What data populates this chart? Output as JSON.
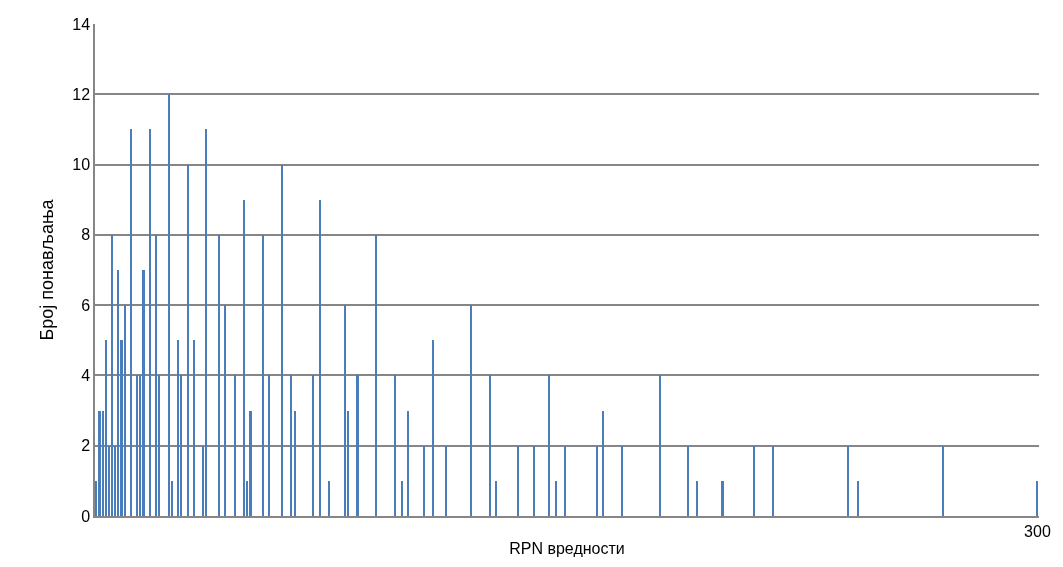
{
  "chart_data": {
    "type": "bar",
    "xlabel": "RPN вредности",
    "ylabel": "Број понављања",
    "color": "#4a7ebb",
    "categories": [
      null,
      null,
      null,
      null,
      null,
      null,
      null,
      null,
      null,
      null,
      null,
      null,
      null,
      null,
      null,
      null,
      null,
      null,
      null,
      null,
      null,
      null,
      null,
      null,
      null,
      null,
      null,
      null,
      null,
      null,
      null,
      null,
      null,
      null,
      null,
      null,
      null,
      null,
      null,
      null,
      null,
      null,
      null,
      null,
      null,
      null,
      null,
      null,
      null,
      null,
      null,
      null,
      null,
      null,
      null,
      null,
      null,
      null,
      null,
      null,
      null,
      null,
      null,
      null,
      null,
      null,
      null,
      null,
      null,
      null,
      null,
      null,
      null,
      null,
      null,
      null,
      null,
      null,
      null,
      null,
      null,
      null,
      null,
      null,
      null,
      null,
      null,
      null,
      null,
      null,
      null,
      null,
      null,
      null,
      null,
      null,
      null,
      null,
      null,
      null,
      null,
      null,
      null,
      null,
      null,
      null,
      null,
      null,
      null,
      null,
      null,
      null,
      null,
      null,
      null,
      null,
      null,
      null,
      null,
      null,
      null,
      null,
      null,
      null,
      null,
      null,
      null,
      null,
      null,
      null,
      null,
      null,
      null,
      null,
      null,
      null,
      null,
      null,
      null,
      null,
      null,
      null,
      null,
      null,
      null,
      null,
      null,
      null,
      null,
      null,
      null,
      null,
      null,
      null,
      null,
      null,
      null,
      null,
      null,
      null,
      null,
      null,
      null,
      null,
      null,
      null,
      null,
      null,
      null,
      null,
      null,
      null,
      null,
      null,
      null,
      null,
      null,
      null,
      null,
      null,
      null,
      null,
      null,
      null,
      null,
      null,
      null,
      null,
      null,
      null,
      null,
      null,
      null,
      null,
      null,
      null,
      null,
      null,
      null,
      null,
      null,
      null,
      null,
      null,
      null,
      null,
      null,
      null,
      null,
      null,
      null,
      null,
      null,
      null,
      null,
      null,
      null,
      null,
      null,
      null,
      null,
      null,
      null,
      null,
      null,
      null,
      null,
      null,
      null,
      null,
      null,
      null,
      null,
      null,
      null,
      null,
      null,
      null,
      null,
      null,
      null,
      null,
      null,
      null,
      null,
      null,
      null,
      null,
      null,
      null,
      null,
      null,
      null,
      null,
      null,
      null,
      null,
      null,
      null,
      null,
      null,
      null,
      null,
      null,
      null,
      null,
      null,
      null,
      null,
      null,
      null,
      null,
      null,
      null,
      null,
      null,
      null,
      null,
      null,
      null,
      null,
      null,
      null,
      null,
      null,
      null,
      null,
      null,
      null,
      null,
      null,
      null,
      null,
      null,
      null,
      null,
      null,
      null,
      null,
      "300"
    ],
    "values": [
      1,
      3,
      3,
      5,
      2,
      8,
      2,
      7,
      5,
      6,
      null,
      11,
      null,
      4,
      4,
      7,
      null,
      11,
      null,
      8,
      4,
      null,
      null,
      12,
      1,
      null,
      5,
      4,
      null,
      10,
      null,
      5,
      null,
      null,
      2,
      11,
      null,
      null,
      null,
      8,
      null,
      6,
      null,
      null,
      4,
      null,
      null,
      9,
      1,
      3,
      null,
      null,
      null,
      8,
      null,
      4,
      null,
      null,
      null,
      10,
      null,
      null,
      4,
      3,
      null,
      null,
      null,
      null,
      null,
      4,
      null,
      9,
      null,
      null,
      1,
      null,
      null,
      null,
      null,
      6,
      3,
      null,
      null,
      4,
      null,
      null,
      null,
      null,
      null,
      8,
      null,
      null,
      null,
      null,
      null,
      4,
      null,
      1,
      null,
      3,
      null,
      null,
      null,
      null,
      2,
      null,
      null,
      5,
      null,
      null,
      null,
      2,
      null,
      null,
      null,
      null,
      null,
      null,
      null,
      6,
      null,
      null,
      null,
      null,
      null,
      4,
      null,
      1,
      null,
      null,
      null,
      null,
      null,
      null,
      2,
      null,
      null,
      null,
      null,
      2,
      null,
      null,
      null,
      null,
      4,
      null,
      1,
      null,
      null,
      2,
      null,
      null,
      null,
      null,
      null,
      null,
      null,
      null,
      null,
      2,
      null,
      3,
      null,
      null,
      null,
      null,
      null,
      2,
      null,
      null,
      null,
      null,
      null,
      null,
      null,
      null,
      null,
      null,
      null,
      4,
      null,
      null,
      null,
      null,
      null,
      null,
      null,
      null,
      2,
      null,
      null,
      1,
      null,
      null,
      null,
      null,
      null,
      null,
      null,
      1,
      null,
      null,
      null,
      null,
      null,
      null,
      null,
      null,
      null,
      2,
      null,
      null,
      null,
      null,
      null,
      2,
      null,
      null,
      null,
      null,
      null,
      null,
      null,
      null,
      null,
      null,
      null,
      null,
      null,
      null,
      null,
      null,
      null,
      null,
      null,
      null,
      null,
      null,
      null,
      2,
      null,
      null,
      1,
      null,
      null,
      null,
      null,
      null,
      null,
      null,
      null,
      null,
      null,
      null,
      null,
      null,
      null,
      null,
      null,
      null,
      null,
      null,
      null,
      null,
      null,
      null,
      null,
      null,
      null,
      2,
      null,
      null,
      null,
      null,
      null,
      null,
      null,
      null,
      null,
      null,
      null,
      null,
      null,
      null,
      null,
      null,
      null,
      null,
      null,
      null,
      null,
      null,
      null,
      null,
      null,
      null,
      null,
      null,
      null,
      1
    ],
    "ylim": [
      0,
      14
    ],
    "yticks": [
      0,
      2,
      4,
      6,
      8,
      10,
      12,
      14
    ],
    "grid": "y"
  }
}
